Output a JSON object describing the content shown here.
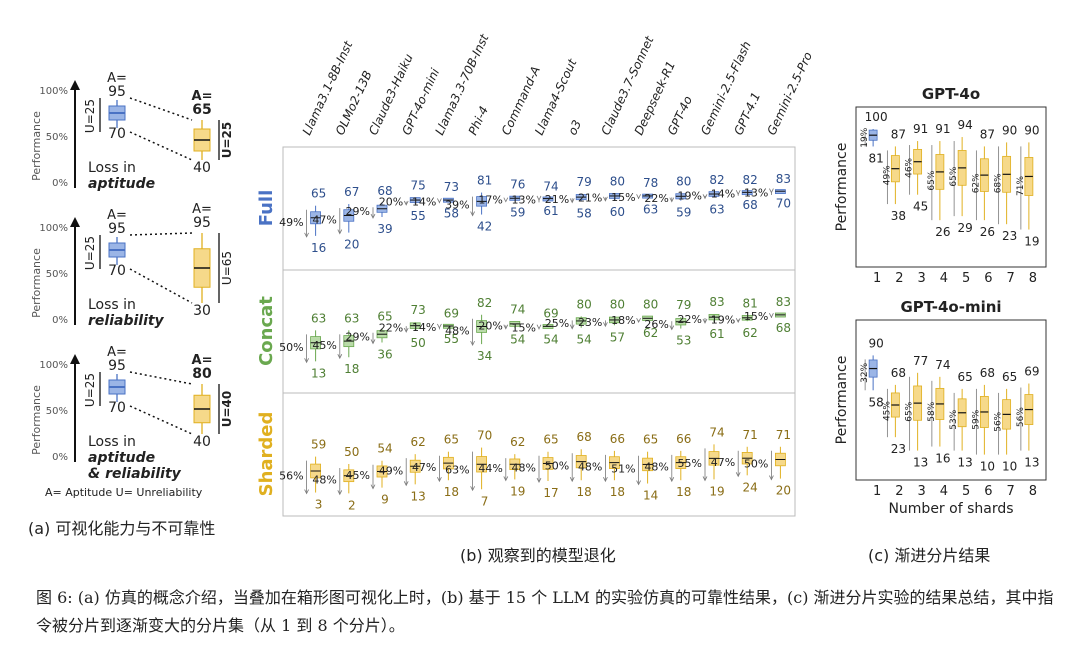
{
  "panel_a": {
    "cards": [
      {
        "top_label": "A=",
        "top": "95",
        "mid": "70",
        "u_label": "U=25",
        "right_a_label": "A=",
        "right_a": "65",
        "right_bold": true,
        "right_u": "U=25",
        "right_bottom": "40",
        "title1": "Loss in",
        "title2": "aptitude",
        "title3": ""
      },
      {
        "top_label": "A=",
        "top": "95",
        "mid": "70",
        "u_label": "U=25",
        "right_a_label": "A=",
        "right_a": "95",
        "right_bold": false,
        "right_u": "U=65",
        "right_bottom": "30",
        "title1": "Loss in",
        "title2": "reliability",
        "title3": ""
      },
      {
        "top_label": "A=",
        "top": "95",
        "mid": "70",
        "u_label": "U=25",
        "right_a_label": "A=",
        "right_a": "80",
        "right_bold": true,
        "right_u": "U=40",
        "right_bottom": "40",
        "title1": "Loss in",
        "title2": "aptitude",
        "title3": "& reliability"
      }
    ],
    "y_axis": "Performance",
    "ticks": [
      "100%",
      "50%",
      "0%"
    ],
    "legend": "A= Aptitude     U= Unreliability",
    "caption": "(a) 可视化能力与不可靠性"
  },
  "panel_b_caption": "(b) 观察到的模型退化",
  "panel_c_caption": "(c) 渐进分片结果",
  "figure_caption": "图 6: (a) 仿真的概念介绍，当叠加在箱形图可视化上时，(b) 基于 15 个 LLM 的实验仿真的可靠性结果，(c) 渐进分片实验的结果总结，其中指令被分片到逐渐变大的分片集（从 1 到 8 个分片）。",
  "colors": {
    "full": "#4a72c4",
    "full_fill": "#9bb5e6",
    "concat": "#6aa84f",
    "concat_fill": "#b9dba8",
    "sharded": "#e0b020",
    "sharded_fill": "#f6d98a",
    "text_full": "#2e4f8c",
    "text_concat": "#4f7f34",
    "text_sharded": "#8a6d16"
  },
  "chart_data": [
    {
      "type": "box",
      "title": "",
      "models": [
        "Llama3.1-8B-Inst",
        "OLMo2-13B",
        "Claude3-Haiku",
        "GPT-4o-mini",
        "Llama3.3-70B-Inst",
        "Phi-4",
        "Command-A",
        "Llama4-Scout",
        "o3",
        "Claude3.7-Sonnet",
        "Deepseek-R1",
        "GPT-4o",
        "Gemini-2.5-Flash",
        "GPT-4.1",
        "Gemini-2.5-Pro"
      ],
      "rows": [
        {
          "name": "Full",
          "top": [
            65,
            67,
            68,
            75,
            73,
            81,
            76,
            74,
            79,
            80,
            78,
            80,
            82,
            82,
            83
          ],
          "pct": [
            "49%",
            "47%",
            "29%",
            "20%",
            "14%",
            "39%",
            "17%",
            "13%",
            "21%",
            "21%",
            "15%",
            "22%",
            "19%",
            "14%",
            "13%"
          ],
          "bottom": [
            16,
            20,
            39,
            55,
            58,
            42,
            59,
            61,
            58,
            60,
            63,
            59,
            63,
            68,
            70
          ]
        },
        {
          "name": "Concat",
          "top": [
            63,
            63,
            65,
            73,
            69,
            82,
            74,
            69,
            80,
            80,
            80,
            79,
            83,
            81,
            83
          ],
          "pct": [
            "50%",
            "45%",
            "29%",
            "22%",
            "14%",
            "48%",
            "20%",
            "15%",
            "25%",
            "23%",
            "18%",
            "26%",
            "22%",
            "19%",
            "15%"
          ],
          "bottom": [
            13,
            18,
            36,
            50,
            55,
            34,
            54,
            54,
            54,
            57,
            62,
            53,
            61,
            62,
            68
          ]
        },
        {
          "name": "Sharded",
          "top": [
            59,
            50,
            54,
            62,
            65,
            70,
            62,
            65,
            68,
            66,
            65,
            66,
            74,
            71,
            71
          ],
          "pct": [
            "56%",
            "48%",
            "45%",
            "49%",
            "47%",
            "63%",
            "44%",
            "48%",
            "50%",
            "48%",
            "51%",
            "48%",
            "55%",
            "47%",
            "50%"
          ],
          "bottom": [
            3,
            2,
            9,
            13,
            18,
            7,
            19,
            17,
            18,
            18,
            14,
            18,
            19,
            24,
            20
          ]
        }
      ]
    },
    {
      "type": "box",
      "title": "GPT-4o",
      "xlabel": "",
      "ylabel": "Performance",
      "x": [
        1,
        2,
        3,
        4,
        5,
        6,
        7,
        8
      ],
      "top": [
        100,
        87,
        91,
        91,
        94,
        87,
        90,
        90
      ],
      "bottom": [
        81,
        38,
        45,
        26,
        29,
        26,
        23,
        19
      ],
      "pct": [
        "19%",
        "49%",
        "46%",
        "65%",
        "65%",
        "62%",
        "68%",
        "71%"
      ]
    },
    {
      "type": "box",
      "title": "GPT-4o-mini",
      "xlabel": "Number of shards",
      "ylabel": "Performance",
      "x": [
        1,
        2,
        3,
        4,
        5,
        6,
        7,
        8
      ],
      "top": [
        90,
        68,
        77,
        74,
        65,
        68,
        65,
        69
      ],
      "bottom": [
        58,
        23,
        13,
        16,
        13,
        10,
        10,
        13
      ],
      "pct": [
        "32%",
        "45%",
        "65%",
        "58%",
        "53%",
        "59%",
        "56%",
        "56%"
      ]
    }
  ]
}
